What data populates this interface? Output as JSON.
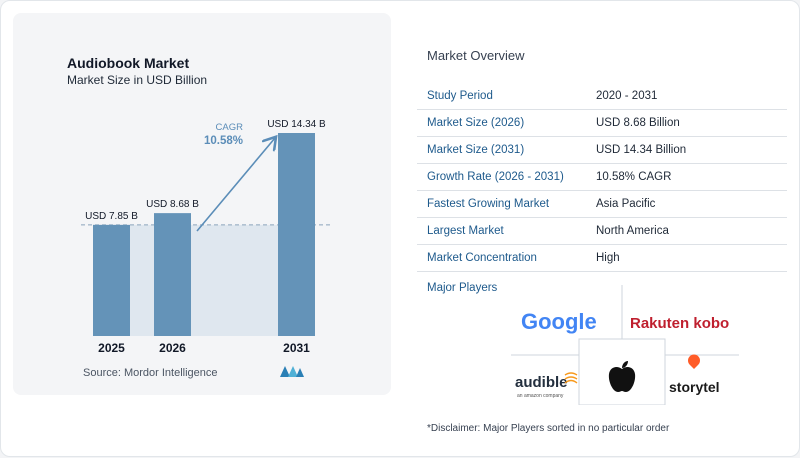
{
  "chart_data": {
    "type": "bar",
    "title": "Audiobook Market",
    "subtitle": "Market Size in USD Billion",
    "categories": [
      "2025",
      "2026",
      "2031"
    ],
    "values": [
      7.85,
      8.68,
      14.34
    ],
    "data_labels": [
      "USD 7.85 B",
      "USD 8.68 B",
      "USD 14.34 B"
    ],
    "annotation": {
      "label": "CAGR",
      "value": "10.58%"
    },
    "ylim": [
      0,
      14.34
    ],
    "bar_color": "#6493b8",
    "accent_color": "#5b8db8"
  },
  "source": "Source:  Mordor Intelligence",
  "overview": {
    "title": "Market Overview",
    "rows": [
      {
        "key": "Study Period",
        "value": "2020 - 2031"
      },
      {
        "key": "Market Size (2026)",
        "value": "USD 8.68 Billion"
      },
      {
        "key": "Market Size (2031)",
        "value": "USD 14.34 Billion"
      },
      {
        "key": "Growth Rate (2026 - 2031)",
        "value": "10.58% CAGR"
      },
      {
        "key": "Fastest Growing Market",
        "value": "Asia Pacific"
      },
      {
        "key": "Largest Market",
        "value": "North America"
      },
      {
        "key": "Market Concentration",
        "value": "High"
      }
    ]
  },
  "players": {
    "label": "Major Players",
    "logos": {
      "google": "Google",
      "rakuten": "Rakuten kobo",
      "audible": "audible",
      "audible_sub": "an amazon company",
      "apple": "apple-logo-icon",
      "storytel": "storytel"
    }
  },
  "disclaimer": "*Disclaimer: Major Players sorted in no particular order"
}
